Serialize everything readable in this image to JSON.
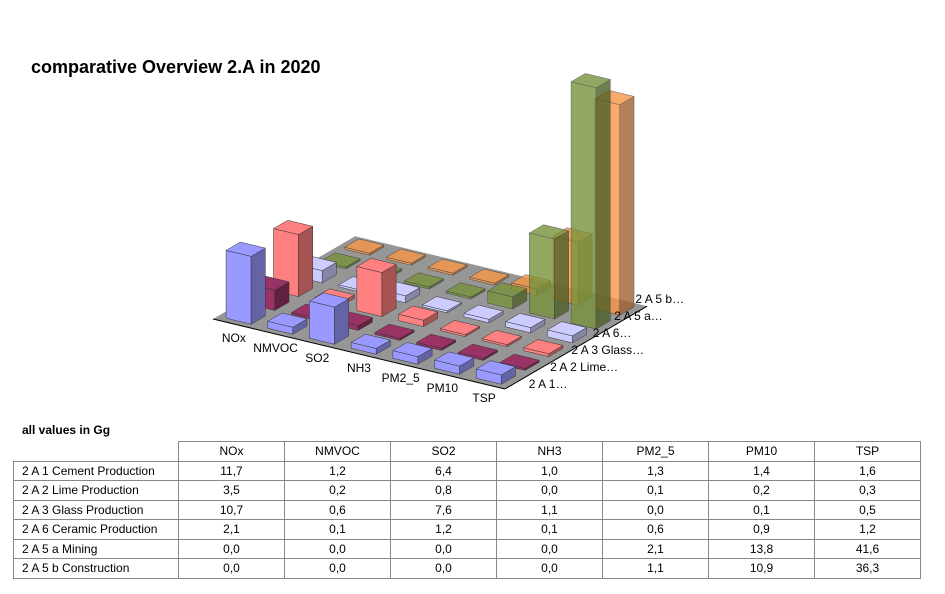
{
  "title": "comparative Overview 2.A in 2020",
  "unit_note": "all values in Gg",
  "chart_data": {
    "type": "bar3d",
    "title": "comparative Overview 2.A in 2020",
    "categories": [
      "NOx",
      "NMVOC",
      "SO2",
      "NH3",
      "PM2_5",
      "PM10",
      "TSP"
    ],
    "row_axis_labels": [
      "2 A 1…",
      "2 A 2 Lime…",
      "2 A 3 Glass…",
      "2 A 6…",
      "2 A 5 a…",
      "2 A 5 b…"
    ],
    "series": [
      {
        "name": "2 A 1 Cement Production",
        "color": "#9999ff",
        "values": [
          11.7,
          1.2,
          6.4,
          1.0,
          1.3,
          1.4,
          1.6
        ]
      },
      {
        "name": "2 A 2 Lime Production",
        "color": "#993366",
        "values": [
          3.5,
          0.2,
          0.8,
          0.0,
          0.1,
          0.2,
          0.3
        ]
      },
      {
        "name": "2 A 3 Glass Production",
        "color": "#ff8080",
        "values": [
          10.7,
          0.6,
          7.6,
          1.1,
          0.0,
          0.1,
          0.5
        ]
      },
      {
        "name": "2 A 6 Ceramic Production",
        "color": "#ccccff",
        "values": [
          2.1,
          0.1,
          1.2,
          0.1,
          0.6,
          0.9,
          1.2
        ]
      },
      {
        "name": "2 A 5 a Mining",
        "color": "#77933c",
        "values": [
          0.0,
          0.0,
          0.0,
          0.0,
          2.1,
          13.8,
          41.6
        ]
      },
      {
        "name": "2 A 5 b Construction",
        "color": "#f79646",
        "values": [
          0.0,
          0.0,
          0.0,
          0.0,
          1.1,
          10.9,
          36.3
        ]
      }
    ]
  },
  "table": {
    "headers": [
      "NOx",
      "NMVOC",
      "SO2",
      "NH3",
      "PM2_5",
      "PM10",
      "TSP"
    ],
    "rows": [
      {
        "label": "2 A 1 Cement Production",
        "values": [
          "11,7",
          "1,2",
          "6,4",
          "1,0",
          "1,3",
          "1,4",
          "1,6"
        ]
      },
      {
        "label": "2 A 2 Lime Production",
        "values": [
          "3,5",
          "0,2",
          "0,8",
          "0,0",
          "0,1",
          "0,2",
          "0,3"
        ]
      },
      {
        "label": "2 A 3 Glass Production",
        "values": [
          "10,7",
          "0,6",
          "7,6",
          "1,1",
          "0,0",
          "0,1",
          "0,5"
        ]
      },
      {
        "label": "2 A 6 Ceramic Production",
        "values": [
          "2,1",
          "0,1",
          "1,2",
          "0,1",
          "0,6",
          "0,9",
          "1,2"
        ]
      },
      {
        "label": "2 A 5 a Mining",
        "values": [
          "0,0",
          "0,0",
          "0,0",
          "0,0",
          "2,1",
          "13,8",
          "41,6"
        ]
      },
      {
        "label": "2 A 5 b Construction",
        "values": [
          "0,0",
          "0,0",
          "0,0",
          "0,0",
          "1,1",
          "10,9",
          "36,3"
        ]
      }
    ]
  }
}
